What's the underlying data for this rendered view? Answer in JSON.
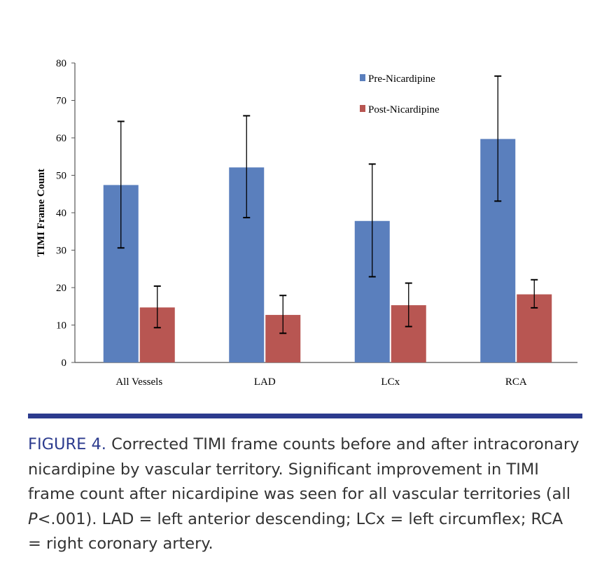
{
  "chart_data": {
    "type": "bar",
    "title": "",
    "xlabel": "",
    "ylabel": "TIMI Frame Count",
    "ylim": [
      0,
      80
    ],
    "yticks": [
      "0",
      "10",
      "20",
      "30",
      "40",
      "50",
      "60",
      "70",
      "80"
    ],
    "categories": [
      "All Vessels",
      "LAD",
      "LCx",
      "RCA"
    ],
    "legend_position": "top-right",
    "grid": false,
    "series": [
      {
        "name": "Pre-Nicardipine",
        "color": "#5a7fbd",
        "values": [
          47.4,
          52.1,
          37.8,
          59.7
        ],
        "error_low": [
          30.6,
          38.7,
          22.9,
          43.1
        ],
        "error_high": [
          64.4,
          65.9,
          53.0,
          76.5
        ]
      },
      {
        "name": "Post-Nicardipine",
        "color": "#b85652",
        "values": [
          14.7,
          12.7,
          15.3,
          18.2
        ],
        "error_low": [
          9.3,
          7.8,
          9.6,
          14.6
        ],
        "error_high": [
          20.4,
          17.9,
          21.2,
          22.1
        ]
      }
    ]
  },
  "caption": {
    "label": "FIGURE 4.",
    "text_before_p": " Corrected TIMI frame counts before and after intracoronary nicardipine by vascular territory. Significant improvement in TIMI frame count after nicardipine was seen for all vascular territories (all ",
    "p_symbol": "P",
    "text_after_p": "<.001). LAD = left anterior descending; LCx = left circumflex; RCA = right coronary artery."
  },
  "colors": {
    "accent_rule": "#2c3b8e"
  }
}
